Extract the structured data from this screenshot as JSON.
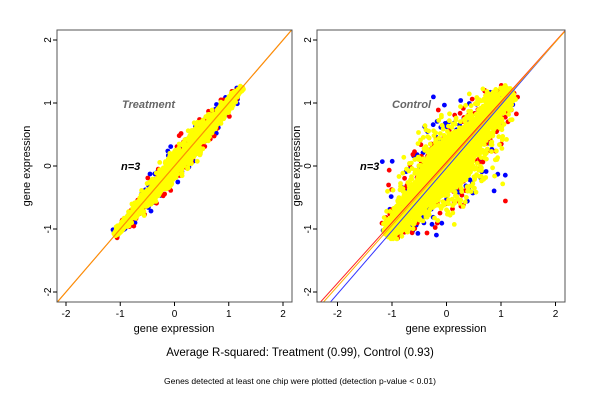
{
  "chart_data": [
    {
      "type": "scatter",
      "panel": "left",
      "title": "Treatment",
      "annotation": "n=3",
      "xlabel": "gene expression",
      "ylabel": "gene expression",
      "xlim": [
        -2.15,
        2.15
      ],
      "ylim": [
        -2.15,
        2.15
      ],
      "xticks": [
        -2,
        -1,
        0,
        1,
        2
      ],
      "yticks": [
        -2,
        -1,
        0,
        1,
        2
      ],
      "grid": false,
      "series_colors": {
        "replicate_1": "#0000ff",
        "replicate_2": "#ff0000",
        "replicate_3": "#ffff00"
      },
      "point_cloud": {
        "x_range": [
          -1.1,
          1.25
        ],
        "spread": 0.09
      },
      "r_squared": 0.99,
      "reference_lines": [
        {
          "name": "fit-red",
          "color": "#dd2222",
          "slope": 1.0,
          "intercept": 0.0
        },
        {
          "name": "fit-orange",
          "color": "#ff9900",
          "slope": 1.0,
          "intercept": 0.0
        }
      ]
    },
    {
      "type": "scatter",
      "panel": "right",
      "title": "Control",
      "annotation": "n=3",
      "xlabel": "gene expression",
      "ylabel": "gene expression",
      "xlim": [
        -2.15,
        2.15
      ],
      "ylim": [
        -2.15,
        2.15
      ],
      "xticks": [
        -2,
        -1,
        0,
        1,
        2
      ],
      "yticks": [
        -2,
        -1,
        0,
        1,
        2
      ],
      "grid": false,
      "series_colors": {
        "replicate_1": "#0000ff",
        "replicate_2": "#ff0000",
        "replicate_3": "#ffff00"
      },
      "point_cloud": {
        "x_range": [
          -1.1,
          1.2
        ],
        "spread": 0.3
      },
      "r_squared": 0.93,
      "reference_lines": [
        {
          "name": "fit-blue",
          "color": "#3333ff",
          "slope": 1.0,
          "intercept": -0.03
        },
        {
          "name": "fit-red",
          "color": "#ff2222",
          "slope": 0.96,
          "intercept": 0.06
        },
        {
          "name": "fit-orange",
          "color": "#ffaa00",
          "slope": 0.97,
          "intercept": 0.03
        }
      ]
    }
  ],
  "captions": {
    "main": "Average R-squared: Treatment (0.99), Control (0.93)",
    "sub": "Genes detected at least one chip were plotted (detection p-value < 0.01)"
  }
}
